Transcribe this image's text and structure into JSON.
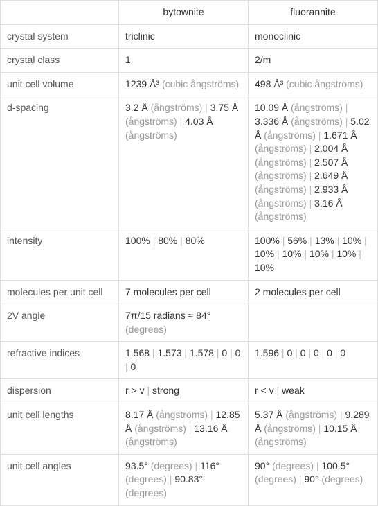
{
  "colors": {
    "border": "#dddddd",
    "text": "#333333",
    "label": "#555555",
    "unit": "#999999",
    "sep": "#bbbbbb",
    "background": "#ffffff"
  },
  "fontsize": 14,
  "columns": [
    "",
    "bytownite",
    "fluorannite"
  ],
  "rows": [
    {
      "label": "crystal system",
      "bytownite": [
        [
          {
            "t": "triclinic"
          }
        ]
      ],
      "fluorannite": [
        [
          {
            "t": "monoclinic"
          }
        ]
      ]
    },
    {
      "label": "crystal class",
      "bytownite": [
        [
          {
            "t": "1"
          }
        ]
      ],
      "fluorannite": [
        [
          {
            "t": "2/m"
          }
        ]
      ]
    },
    {
      "label": "unit cell volume",
      "bytownite": [
        [
          {
            "t": "1239 Å³ "
          },
          {
            "t": "(cubic ångströms)",
            "u": true
          }
        ]
      ],
      "fluorannite": [
        [
          {
            "t": "498 Å³ "
          },
          {
            "t": "(cubic ångströms)",
            "u": true
          }
        ]
      ]
    },
    {
      "label": "d-spacing",
      "bytownite": [
        [
          {
            "t": "3.2 Å "
          },
          {
            "t": "(ångströms)",
            "u": true
          },
          {
            "t": " | ",
            "s": true
          },
          {
            "t": "3.75 Å "
          },
          {
            "t": "(ångströms)",
            "u": true
          },
          {
            "t": " | ",
            "s": true
          },
          {
            "t": "4.03 Å "
          },
          {
            "t": "(ångströms)",
            "u": true
          }
        ]
      ],
      "fluorannite": [
        [
          {
            "t": "10.09 Å "
          },
          {
            "t": "(ångströms)",
            "u": true
          },
          {
            "t": " | ",
            "s": true
          },
          {
            "t": "3.336 Å "
          },
          {
            "t": "(ångströms)",
            "u": true
          },
          {
            "t": " | ",
            "s": true
          },
          {
            "t": "5.02 Å "
          },
          {
            "t": "(ångströms)",
            "u": true
          },
          {
            "t": " | ",
            "s": true
          },
          {
            "t": "1.671 Å "
          },
          {
            "t": "(ångströms)",
            "u": true
          },
          {
            "t": " | ",
            "s": true
          },
          {
            "t": "2.004 Å "
          },
          {
            "t": "(ångströms)",
            "u": true
          },
          {
            "t": " | ",
            "s": true
          },
          {
            "t": "2.507 Å "
          },
          {
            "t": "(ångströms)",
            "u": true
          },
          {
            "t": " | ",
            "s": true
          },
          {
            "t": "2.649 Å "
          },
          {
            "t": "(ångströms)",
            "u": true
          },
          {
            "t": " | ",
            "s": true
          },
          {
            "t": "2.933 Å "
          },
          {
            "t": "(ångströms)",
            "u": true
          },
          {
            "t": " | ",
            "s": true
          },
          {
            "t": "3.16 Å "
          },
          {
            "t": "(ångströms)",
            "u": true
          }
        ]
      ]
    },
    {
      "label": "intensity",
      "bytownite": [
        [
          {
            "t": "100%"
          },
          {
            "t": " | ",
            "s": true
          },
          {
            "t": "80%"
          },
          {
            "t": " | ",
            "s": true
          },
          {
            "t": "80%"
          }
        ]
      ],
      "fluorannite": [
        [
          {
            "t": "100%"
          },
          {
            "t": " | ",
            "s": true
          },
          {
            "t": "56%"
          },
          {
            "t": " | ",
            "s": true
          },
          {
            "t": "13%"
          },
          {
            "t": " | ",
            "s": true
          },
          {
            "t": "10%"
          },
          {
            "t": " | ",
            "s": true
          },
          {
            "t": "10%"
          },
          {
            "t": " | ",
            "s": true
          },
          {
            "t": "10%"
          },
          {
            "t": " | ",
            "s": true
          },
          {
            "t": "10%"
          },
          {
            "t": " | ",
            "s": true
          },
          {
            "t": "10%"
          },
          {
            "t": " | ",
            "s": true
          },
          {
            "t": "10%"
          }
        ]
      ]
    },
    {
      "label": "molecules per unit cell",
      "bytownite": [
        [
          {
            "t": "7 molecules per cell"
          }
        ]
      ],
      "fluorannite": [
        [
          {
            "t": "2 molecules per cell"
          }
        ]
      ]
    },
    {
      "label": "2V angle",
      "bytownite": [
        [
          {
            "t": "7π/15 radians ≈ 84° "
          },
          {
            "t": "(degrees)",
            "u": true
          }
        ]
      ],
      "fluorannite": [
        [
          {
            "t": ""
          }
        ]
      ]
    },
    {
      "label": "refractive indices",
      "bytownite": [
        [
          {
            "t": "1.568"
          },
          {
            "t": " | ",
            "s": true
          },
          {
            "t": "1.573"
          },
          {
            "t": " | ",
            "s": true
          },
          {
            "t": "1.578"
          },
          {
            "t": " | ",
            "s": true
          },
          {
            "t": "0"
          },
          {
            "t": " | ",
            "s": true
          },
          {
            "t": "0"
          },
          {
            "t": " | ",
            "s": true
          },
          {
            "t": "0"
          }
        ]
      ],
      "fluorannite": [
        [
          {
            "t": "1.596"
          },
          {
            "t": " | ",
            "s": true
          },
          {
            "t": "0"
          },
          {
            "t": " | ",
            "s": true
          },
          {
            "t": "0"
          },
          {
            "t": " | ",
            "s": true
          },
          {
            "t": "0"
          },
          {
            "t": " | ",
            "s": true
          },
          {
            "t": "0"
          },
          {
            "t": " | ",
            "s": true
          },
          {
            "t": "0"
          }
        ]
      ]
    },
    {
      "label": "dispersion",
      "bytownite": [
        [
          {
            "t": "r > v"
          },
          {
            "t": " | ",
            "s": true
          },
          {
            "t": "strong"
          }
        ]
      ],
      "fluorannite": [
        [
          {
            "t": "r < v"
          },
          {
            "t": " | ",
            "s": true
          },
          {
            "t": "weak"
          }
        ]
      ]
    },
    {
      "label": "unit cell lengths",
      "bytownite": [
        [
          {
            "t": "8.17 Å "
          },
          {
            "t": "(ångströms)",
            "u": true
          },
          {
            "t": " | ",
            "s": true
          },
          {
            "t": "12.85 Å "
          },
          {
            "t": "(ångströms)",
            "u": true
          },
          {
            "t": " | ",
            "s": true
          },
          {
            "t": "13.16 Å "
          },
          {
            "t": "(ångströms)",
            "u": true
          }
        ]
      ],
      "fluorannite": [
        [
          {
            "t": "5.37 Å "
          },
          {
            "t": "(ångströms)",
            "u": true
          },
          {
            "t": " | ",
            "s": true
          },
          {
            "t": "9.289 Å "
          },
          {
            "t": "(ångströms)",
            "u": true
          },
          {
            "t": " | ",
            "s": true
          },
          {
            "t": "10.15 Å "
          },
          {
            "t": "(ångströms)",
            "u": true
          }
        ]
      ]
    },
    {
      "label": "unit cell angles",
      "bytownite": [
        [
          {
            "t": "93.5° "
          },
          {
            "t": "(degrees)",
            "u": true
          },
          {
            "t": " | ",
            "s": true
          },
          {
            "t": "116° "
          },
          {
            "t": "(degrees)",
            "u": true
          },
          {
            "t": " | ",
            "s": true
          },
          {
            "t": "90.83° "
          },
          {
            "t": "(degrees)",
            "u": true
          }
        ]
      ],
      "fluorannite": [
        [
          {
            "t": "90° "
          },
          {
            "t": "(degrees)",
            "u": true
          },
          {
            "t": " | ",
            "s": true
          },
          {
            "t": "100.5° "
          },
          {
            "t": "(degrees)",
            "u": true
          },
          {
            "t": " | ",
            "s": true
          },
          {
            "t": "90° "
          },
          {
            "t": "(degrees)",
            "u": true
          }
        ]
      ]
    }
  ]
}
